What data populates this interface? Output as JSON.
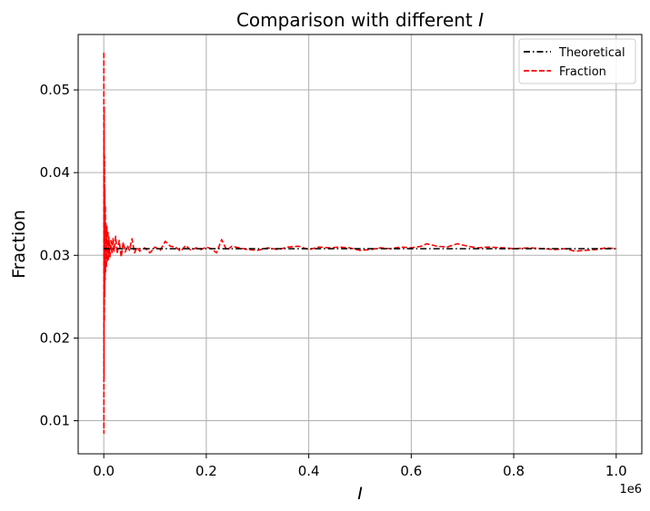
{
  "chart_data": {
    "type": "line",
    "title": "Comparison with different",
    "title_symbol": "I",
    "xlabel": "I",
    "ylabel": "Fraction",
    "x_offset_label": "1e6",
    "xlim": [
      -50000,
      1050000
    ],
    "ylim": [
      0.006,
      0.0567
    ],
    "grid": true,
    "legend_position": "upper-right",
    "x_ticks": [
      0,
      200000,
      400000,
      600000,
      800000,
      1000000
    ],
    "x_tick_labels": [
      "0.0",
      "0.2",
      "0.4",
      "0.6",
      "0.8",
      "1.0"
    ],
    "y_ticks": [
      0.01,
      0.02,
      0.03,
      0.04,
      0.05
    ],
    "y_tick_labels": [
      "0.01",
      "0.02",
      "0.03",
      "0.04",
      "0.05"
    ],
    "series": [
      {
        "name": "Theoretical",
        "color": "#000000",
        "style": "dashdot",
        "x": [
          0,
          1000000
        ],
        "y": [
          0.0308,
          0.0308
        ]
      },
      {
        "name": "Fraction",
        "color": "#ff0000",
        "style": "dashed",
        "x": [
          100,
          200,
          300,
          500,
          700,
          1000,
          1300,
          1600,
          2000,
          2500,
          3000,
          3500,
          4000,
          5000,
          6000,
          7000,
          8000,
          9000,
          10000,
          12000,
          14000,
          16000,
          18000,
          20000,
          23000,
          26000,
          30000,
          34000,
          38000,
          42000,
          46000,
          50000,
          55000,
          60000,
          65000,
          70000,
          80000,
          90000,
          100000,
          110000,
          120000,
          130000,
          140000,
          150000,
          160000,
          170000,
          180000,
          190000,
          200000,
          210000,
          220000,
          230000,
          240000,
          250000,
          265000,
          280000,
          300000,
          320000,
          340000,
          360000,
          380000,
          400000,
          420000,
          440000,
          460000,
          480000,
          500000,
          520000,
          540000,
          560000,
          580000,
          600000,
          620000,
          630000,
          650000,
          670000,
          690000,
          710000,
          730000,
          750000,
          780000,
          800000,
          830000,
          860000,
          880000,
          900000,
          920000,
          940000,
          960000,
          980000,
          1000000
        ],
        "y": [
          0.0545,
          0.0085,
          0.045,
          0.015,
          0.048,
          0.022,
          0.042,
          0.025,
          0.038,
          0.027,
          0.036,
          0.028,
          0.034,
          0.0285,
          0.0335,
          0.0292,
          0.033,
          0.0295,
          0.0322,
          0.0298,
          0.0318,
          0.0302,
          0.0321,
          0.0305,
          0.0323,
          0.0302,
          0.0318,
          0.0298,
          0.0316,
          0.0304,
          0.0312,
          0.0306,
          0.032,
          0.0303,
          0.031,
          0.0305,
          0.0309,
          0.0303,
          0.031,
          0.0306,
          0.0317,
          0.0311,
          0.031,
          0.0305,
          0.0312,
          0.0306,
          0.0309,
          0.0307,
          0.031,
          0.0308,
          0.0303,
          0.0319,
          0.0306,
          0.0311,
          0.0309,
          0.0307,
          0.0306,
          0.0309,
          0.0307,
          0.031,
          0.0311,
          0.0307,
          0.031,
          0.0309,
          0.031,
          0.0309,
          0.0306,
          0.0307,
          0.0309,
          0.0308,
          0.031,
          0.0309,
          0.0311,
          0.0314,
          0.0311,
          0.031,
          0.0314,
          0.0311,
          0.0309,
          0.031,
          0.0309,
          0.0308,
          0.0309,
          0.0308,
          0.0307,
          0.0308,
          0.0305,
          0.0306,
          0.0307,
          0.0309,
          0.0308
        ]
      }
    ]
  }
}
